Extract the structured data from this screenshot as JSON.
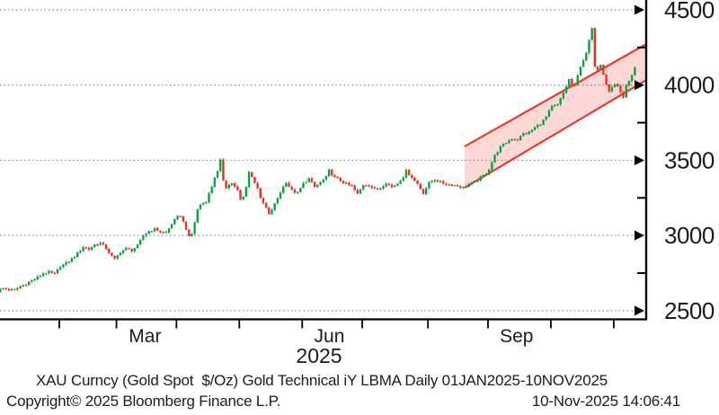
{
  "footer": {
    "title_line": "XAU Curncy (Gold Spot  $/Oz) Gold Technical iY LBMA Daily 01JAN2025-10NOV2025",
    "copyright": "Copyright© 2025 Bloomberg Finance L.P.",
    "timestamp": "10-Nov-2025 14:06:41"
  },
  "chart_data": {
    "type": "candlestick",
    "title": "XAU Curncy (Gold Spot $/Oz) Gold Technical",
    "period": "Daily",
    "date_range": "01JAN2025-10NOV2025",
    "year_label": "2025",
    "ylim": [
      2450,
      4580
    ],
    "y_major_ticks": [
      4500,
      4000,
      3500,
      3000,
      2500
    ],
    "y_minor_ticks": [
      4250,
      3750,
      3250,
      2750
    ],
    "x_month_tick_days": [
      22,
      42,
      63,
      85,
      107,
      128,
      151,
      172,
      194,
      216
    ],
    "x_axis_labels": [
      {
        "label": "Mar",
        "day": 52
      },
      {
        "label": "Jun",
        "day": 116.5
      },
      {
        "label": "Sep",
        "day": 182
      }
    ],
    "grid": "dotted-horizontal",
    "bars": 224,
    "colors": {
      "up": "#0aa33f",
      "down": "#ee2f1f",
      "channel_line": "#f03828",
      "channel_fill": "rgba(240,65,55,0.20)",
      "grid": "#8c8c8c",
      "axis": "#000000",
      "text": "#1b1b26",
      "background": "#ffffff"
    },
    "channel": {
      "comment": "upward trend channel, day index vs price",
      "d1": 163.8,
      "top1": 3592,
      "bottom1": 3317,
      "d2": 227.4,
      "top2": 4273,
      "bottom2": 4034
    },
    "path": [
      [
        0,
        2632
      ],
      [
        2,
        2648
      ],
      [
        4,
        2640
      ],
      [
        6,
        2636
      ],
      [
        8,
        2662
      ],
      [
        10,
        2678
      ],
      [
        12,
        2700
      ],
      [
        14,
        2720
      ],
      [
        16,
        2748
      ],
      [
        18,
        2756
      ],
      [
        20,
        2742
      ],
      [
        22,
        2795
      ],
      [
        24,
        2815
      ],
      [
        26,
        2845
      ],
      [
        28,
        2880
      ],
      [
        30,
        2925
      ],
      [
        32,
        2908
      ],
      [
        34,
        2938
      ],
      [
        36,
        2948
      ],
      [
        38,
        2915
      ],
      [
        40,
        2860
      ],
      [
        41,
        2842
      ],
      [
        43,
        2890
      ],
      [
        45,
        2912
      ],
      [
        47,
        2902
      ],
      [
        49,
        2932
      ],
      [
        51,
        2998
      ],
      [
        53,
        3028
      ],
      [
        55,
        3044
      ],
      [
        57,
        3024
      ],
      [
        59,
        3018
      ],
      [
        61,
        3078
      ],
      [
        63,
        3122
      ],
      [
        64,
        3134
      ],
      [
        66,
        3045
      ],
      [
        67,
        2988
      ],
      [
        68,
        3012
      ],
      [
        69,
        3088
      ],
      [
        70,
        3172
      ],
      [
        71,
        3208
      ],
      [
        73,
        3228
      ],
      [
        75,
        3326
      ],
      [
        76,
        3388
      ],
      [
        77,
        3424
      ],
      [
        78,
        3496
      ],
      [
        79,
        3368
      ],
      [
        80,
        3322
      ],
      [
        82,
        3348
      ],
      [
        84,
        3298
      ],
      [
        85,
        3238
      ],
      [
        86,
        3256
      ],
      [
        87,
        3328
      ],
      [
        88,
        3422
      ],
      [
        89,
        3388
      ],
      [
        91,
        3318
      ],
      [
        92,
        3242
      ],
      [
        94,
        3182
      ],
      [
        95,
        3136
      ],
      [
        97,
        3208
      ],
      [
        99,
        3288
      ],
      [
        101,
        3356
      ],
      [
        103,
        3298
      ],
      [
        105,
        3282
      ],
      [
        107,
        3344
      ],
      [
        109,
        3378
      ],
      [
        111,
        3322
      ],
      [
        113,
        3352
      ],
      [
        115,
        3388
      ],
      [
        116,
        3432
      ],
      [
        118,
        3386
      ],
      [
        120,
        3366
      ],
      [
        122,
        3342
      ],
      [
        124,
        3328
      ],
      [
        126,
        3274
      ],
      [
        128,
        3338
      ],
      [
        130,
        3334
      ],
      [
        132,
        3306
      ],
      [
        134,
        3316
      ],
      [
        136,
        3352
      ],
      [
        138,
        3322
      ],
      [
        140,
        3346
      ],
      [
        142,
        3392
      ],
      [
        143,
        3428
      ],
      [
        145,
        3388
      ],
      [
        147,
        3342
      ],
      [
        149,
        3282
      ],
      [
        151,
        3348
      ],
      [
        153,
        3372
      ],
      [
        155,
        3354
      ],
      [
        157,
        3342
      ],
      [
        159,
        3336
      ],
      [
        161,
        3330
      ],
      [
        163,
        3318
      ],
      [
        165,
        3342
      ],
      [
        167,
        3356
      ],
      [
        169,
        3384
      ],
      [
        171,
        3412
      ],
      [
        172,
        3442
      ],
      [
        174,
        3532
      ],
      [
        176,
        3588
      ],
      [
        178,
        3618
      ],
      [
        180,
        3644
      ],
      [
        182,
        3638
      ],
      [
        184,
        3678
      ],
      [
        186,
        3684
      ],
      [
        188,
        3718
      ],
      [
        190,
        3744
      ],
      [
        192,
        3788
      ],
      [
        194,
        3858
      ],
      [
        196,
        3868
      ],
      [
        198,
        3948
      ],
      [
        200,
        4038
      ],
      [
        201,
        4002
      ],
      [
        202,
        3992
      ],
      [
        204,
        4128
      ],
      [
        206,
        4208
      ],
      [
        207,
        4298
      ],
      [
        208,
        4372
      ],
      [
        209,
        4128
      ],
      [
        210,
        4108
      ],
      [
        211,
        4142
      ],
      [
        212,
        4078
      ],
      [
        213,
        4008
      ],
      [
        214,
        3958
      ],
      [
        215,
        3986
      ],
      [
        216,
        4008
      ],
      [
        217,
        3994
      ],
      [
        218,
        3948
      ],
      [
        219,
        3924
      ],
      [
        220,
        3992
      ],
      [
        221,
        4024
      ],
      [
        222,
        4058
      ],
      [
        223,
        4112
      ]
    ]
  }
}
